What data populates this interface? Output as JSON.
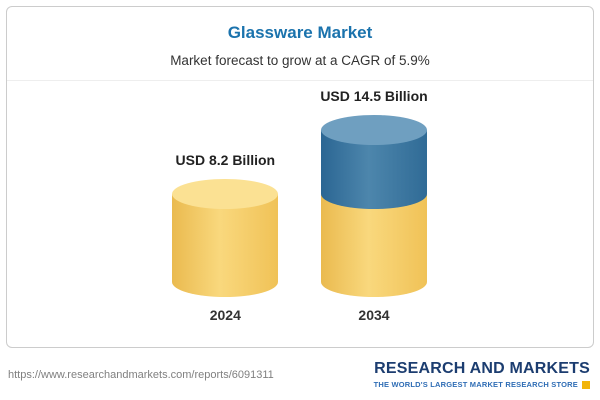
{
  "chart_data": {
    "type": "bar",
    "title": "Glassware Market",
    "subtitle": "Market forecast to grow at a CAGR of 5.9%",
    "categories": [
      "2024",
      "2034"
    ],
    "values": [
      8.2,
      14.5
    ],
    "value_labels": [
      "USD 8.2 Billion",
      "USD 14.5 Billion"
    ],
    "unit": "USD Billion",
    "ylim": [
      0,
      14.5
    ],
    "grid": "off",
    "legend": "none",
    "bar_colors": {
      "base": "#f5cd60",
      "growth": "#34729e"
    },
    "bar_style": "3d-cylinder",
    "notes": "2034 cylinder is stacked: yellow base equal to 2024 value (8.2) plus blue growth segment (6.3)"
  },
  "colors": {
    "title_blue": "#1b73ad",
    "yellow_body": "#f5cd60",
    "yellow_top": "#fbe193",
    "blue_body": "#34729e",
    "blue_top": "#6f9fc0",
    "logo_navy": "#1c3d70",
    "logo_blue": "#2f6db5",
    "logo_yellow": "#f2b50c"
  },
  "footer": {
    "url": "https://www.researchandmarkets.com/reports/6091311",
    "logo_title": "RESEARCH AND MARKETS",
    "logo_tagline": "THE WORLD'S LARGEST MARKET RESEARCH STORE"
  }
}
